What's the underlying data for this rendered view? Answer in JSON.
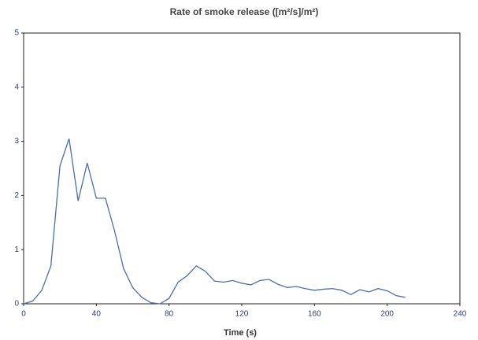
{
  "chart_data": {
    "type": "line",
    "title": "Rate of smoke release ([m²/s]/m²)",
    "x_label": "Time (s)",
    "series": [
      {
        "name": "Rate of smoke release",
        "color": "#4a6fa8",
        "x": [
          0,
          5,
          10,
          15,
          20,
          25,
          30,
          35,
          40,
          45,
          50,
          55,
          60,
          65,
          70,
          75,
          80,
          85,
          90,
          95,
          100,
          105,
          110,
          115,
          120,
          125,
          130,
          135,
          140,
          145,
          150,
          155,
          160,
          165,
          170,
          175,
          180,
          185,
          190,
          195,
          200,
          205,
          210
        ],
        "values": [
          0,
          0.05,
          0.25,
          0.7,
          2.55,
          3.05,
          1.9,
          2.6,
          1.95,
          1.95,
          1.35,
          0.65,
          0.3,
          0.12,
          0.02,
          0,
          0.1,
          0.4,
          0.52,
          0.7,
          0.6,
          0.42,
          0.4,
          0.43,
          0.38,
          0.35,
          0.43,
          0.45,
          0.36,
          0.3,
          0.32,
          0.28,
          0.25,
          0.27,
          0.28,
          0.25,
          0.17,
          0.26,
          0.22,
          0.28,
          0.24,
          0.15,
          0.12
        ]
      }
    ],
    "xlim": [
      0,
      240
    ],
    "xticks": [
      0,
      40,
      80,
      120,
      160,
      200,
      240
    ],
    "ylim": [
      0,
      5
    ],
    "yticks": [
      0,
      1,
      2,
      3,
      4,
      5
    ],
    "grid": false
  }
}
